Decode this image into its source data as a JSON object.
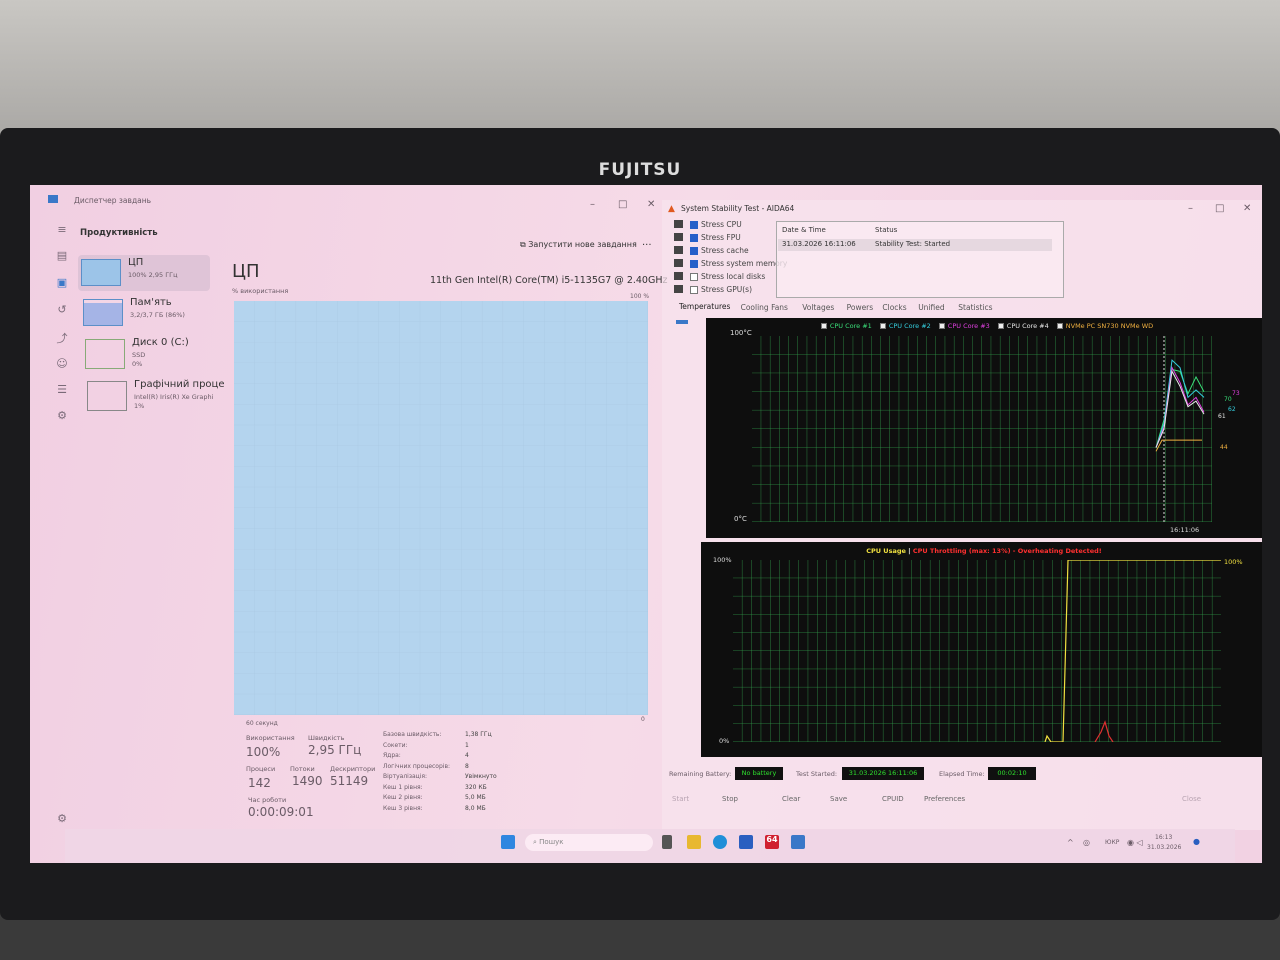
{
  "monitor": {
    "brand": "FUJITSU"
  },
  "task_manager": {
    "title": "Диспетчер завдань",
    "section": "Продуктивність",
    "new_task": "Запустити нове завдання",
    "more": "...",
    "sidebar": [
      {
        "name": "ЦП",
        "detail": "100% 2,95 ГГц",
        "detail2": ""
      },
      {
        "name": "Пам'ять",
        "detail": "3,2/3,7 ГБ (86%)",
        "detail2": ""
      },
      {
        "name": "Диск 0 (C:)",
        "detail": "SSD",
        "detail2": "0%"
      },
      {
        "name": "Графічний проце",
        "detail": "Intel(R) Iris(R) Xe Graphi",
        "detail2": "1%"
      }
    ],
    "cpu_title": "ЦП",
    "cpu_model": "11th Gen Intel(R) Core(TM) i5-1135G7 @ 2.40GHz",
    "usage_label": "% використання",
    "max_label": "100 %",
    "time_label": "60 секунд",
    "min_label": "0",
    "usage_percent": 100,
    "stats": {
      "utilization_label": "Використання",
      "utilization": "100%",
      "speed_label": "Швидкість",
      "speed": "2,95 ГГц",
      "processes_label": "Процеси",
      "processes": "142",
      "threads_label": "Потоки",
      "threads": "1490",
      "handles_label": "Дескриптори",
      "handles": "51149",
      "uptime_label": "Час роботи",
      "uptime": "0:00:09:01"
    },
    "specs": [
      {
        "k": "Базова швидкість:",
        "v": "1,38 ГГц"
      },
      {
        "k": "Сокети:",
        "v": "1"
      },
      {
        "k": "Ядра:",
        "v": "4"
      },
      {
        "k": "Логічних процесорів:",
        "v": "8"
      },
      {
        "k": "Віртуалізація:",
        "v": "Увімкнуто"
      },
      {
        "k": "Кеш 1 рівня:",
        "v": "320 КБ"
      },
      {
        "k": "Кеш 2 рівня:",
        "v": "5,0 МБ"
      },
      {
        "k": "Кеш 3 рівня:",
        "v": "8,0 МБ"
      }
    ]
  },
  "aida": {
    "title": "System Stability Test - AIDA64",
    "stress": [
      {
        "label": "Stress CPU",
        "checked": true
      },
      {
        "label": "Stress FPU",
        "checked": true
      },
      {
        "label": "Stress cache",
        "checked": true
      },
      {
        "label": "Stress system memory",
        "checked": true
      },
      {
        "label": "Stress local disks",
        "checked": false
      },
      {
        "label": "Stress GPU(s)",
        "checked": false
      }
    ],
    "log_headers": [
      "Date & Time",
      "Status"
    ],
    "log_rows": [
      {
        "time": "31.03.2026 16:11:06",
        "status": "Stability Test: Started"
      }
    ],
    "tabs": [
      "Temperatures",
      "Cooling Fans",
      "Voltages",
      "Powers",
      "Clocks",
      "Unified",
      "Statistics"
    ],
    "temp_chart": {
      "legend": [
        {
          "label": "CPU Core #1",
          "color": "#3be07a"
        },
        {
          "label": "CPU Core #2",
          "color": "#35d0e0"
        },
        {
          "label": "CPU Core #3",
          "color": "#e040e0"
        },
        {
          "label": "CPU Core #4",
          "color": "#e8e8e8"
        },
        {
          "label": "NVMe PC SN730 NVMe WD",
          "color": "#f0b040"
        }
      ],
      "y_max_label": "100°C",
      "y_min_label": "0°C",
      "time_label": "16:11:06",
      "readings": [
        {
          "v": "73",
          "color": "#e040e0"
        },
        {
          "v": "70",
          "color": "#3be07a"
        },
        {
          "v": "62",
          "color": "#35d0e0"
        },
        {
          "v": "61",
          "color": "#e8e8e8"
        },
        {
          "v": "44",
          "color": "#f0b040"
        }
      ]
    },
    "cpu_chart": {
      "title": "CPU Usage",
      "separator": "|",
      "throttle": "CPU Throttling (max: 13%) - Overheating Detected!",
      "y_max_label": "100%",
      "y_min_label": "0%",
      "current_label": "100%",
      "current": 100
    },
    "status": {
      "battery_label": "Remaining Battery:",
      "battery": "No battery",
      "started_label": "Test Started:",
      "started": "31.03.2026 16:11:06",
      "elapsed_label": "Elapsed Time:",
      "elapsed": "00:02:10"
    },
    "buttons": [
      "Start",
      "Stop",
      "Clear",
      "Save",
      "CPUID",
      "Preferences",
      "Close"
    ]
  },
  "taskbar": {
    "search": "Пошук",
    "lang": "ЮКР",
    "time": "16:13",
    "date": "31.03.2026"
  }
}
